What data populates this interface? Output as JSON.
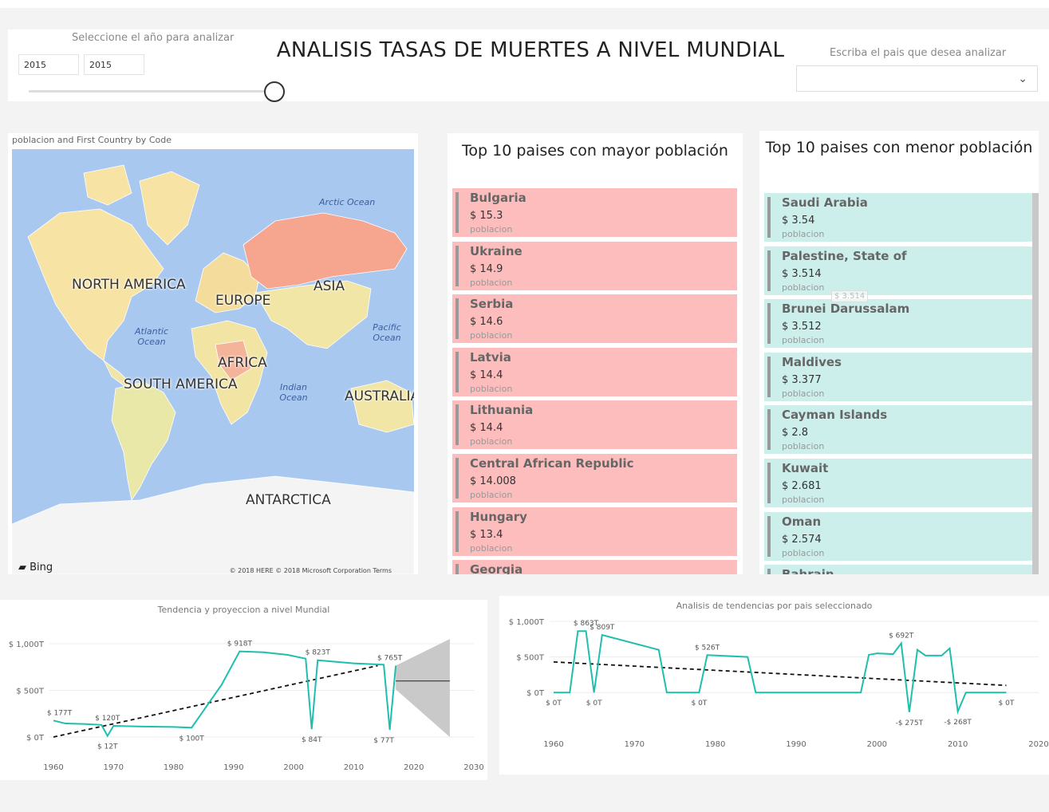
{
  "header": {
    "year_label": "Seleccione el año para analizar",
    "year_from": "2015",
    "year_to": "2015",
    "title": "ANALISIS TASAS DE MUERTES A NIVEL MUNDIAL",
    "country_label": "Escriba el pais que desea analizar"
  },
  "map": {
    "title": "poblacion and First Country by Code",
    "continents": [
      "NORTH AMERICA",
      "EUROPE",
      "ASIA",
      "AFRICA",
      "SOUTH AMERICA",
      "AUSTRALIA",
      "ANTARCTICA"
    ],
    "oceans": [
      "Arctic Ocean",
      "Atlantic Ocean",
      "Pacific Ocean",
      "Indian Ocean"
    ],
    "provider": "Bing",
    "copyright": "© 2018 HERE © 2018 Microsoft Corporation  Terms"
  },
  "top_high": {
    "title": "Top 10 paises con mayor población",
    "category": "poblacion",
    "items": [
      {
        "name": "Bulgaria",
        "value": "$ 15.3"
      },
      {
        "name": "Ukraine",
        "value": "$ 14.9"
      },
      {
        "name": "Serbia",
        "value": "$ 14.6"
      },
      {
        "name": "Latvia",
        "value": "$ 14.4"
      },
      {
        "name": "Lithuania",
        "value": "$ 14.4"
      },
      {
        "name": "Central African Republic",
        "value": "$ 14.008"
      },
      {
        "name": "Hungary",
        "value": "$ 13.4"
      },
      {
        "name": "Georgia",
        "value": ""
      }
    ],
    "color": "#fdbdbd"
  },
  "top_low": {
    "title": "Top 10 paises con menor población",
    "category": "poblacion",
    "tooltip": "$ 3.514",
    "items": [
      {
        "name": "Saudi Arabia",
        "value": "$ 3.54"
      },
      {
        "name": "Palestine, State of",
        "value": "$ 3.514"
      },
      {
        "name": "Brunei Darussalam",
        "value": "$ 3.512"
      },
      {
        "name": "Maldives",
        "value": "$ 3.377"
      },
      {
        "name": "Cayman Islands",
        "value": "$ 2.8"
      },
      {
        "name": "Kuwait",
        "value": "$ 2.681"
      },
      {
        "name": "Oman",
        "value": "$ 2.574"
      },
      {
        "name": "Bahrain",
        "value": ""
      }
    ],
    "color": "#ccefec"
  },
  "chart_data": [
    {
      "type": "line",
      "title": "Tendencia y proyeccion a nivel Mundial",
      "x_ticks": [
        1960,
        1970,
        1980,
        1990,
        2000,
        2010,
        2020,
        2030
      ],
      "y_ticks": [
        "$ 0T",
        "$ 500T",
        "$ 1,000T"
      ],
      "y_tick_values": [
        0,
        500,
        1000
      ],
      "xlim": [
        1960,
        2030
      ],
      "ylim": [
        0,
        1000
      ],
      "series": [
        {
          "x": [
            1960,
            1962,
            1965,
            1968,
            1969,
            1970,
            1975,
            1980,
            1983,
            1988,
            1991,
            1995,
            1999,
            2002,
            2003,
            2004,
            2010,
            2015,
            2016,
            2017
          ],
          "y": [
            177,
            145,
            140,
            130,
            12,
            120,
            112,
            108,
            100,
            560,
            918,
            908,
            880,
            840,
            84,
            823,
            790,
            775,
            77,
            765
          ]
        }
      ],
      "trend": {
        "x": [
          1960,
          2014
        ],
        "y": [
          0,
          765
        ]
      },
      "forecast": {
        "x": [
          2017,
          2026
        ],
        "y": [
          600,
          600
        ],
        "upper": [
          765,
          1050
        ],
        "lower": [
          510,
          0
        ]
      },
      "data_labels": [
        {
          "x": 1961,
          "y": 177,
          "text": "$ 177T"
        },
        {
          "x": 1969,
          "y": 120,
          "text": "$ 120T"
        },
        {
          "x": 1969,
          "y": 12,
          "text": "$ 12T"
        },
        {
          "x": 1983,
          "y": 100,
          "text": "$ 100T"
        },
        {
          "x": 1991,
          "y": 918,
          "text": "$ 918T"
        },
        {
          "x": 2004,
          "y": 823,
          "text": "$ 823T"
        },
        {
          "x": 2003,
          "y": 84,
          "text": "$ 84T"
        },
        {
          "x": 2016,
          "y": 765,
          "text": "$ 765T"
        },
        {
          "x": 2015,
          "y": 77,
          "text": "$ 77T"
        }
      ]
    },
    {
      "type": "line",
      "title": "Analisis de tendencias por pais seleccionado",
      "x_ticks": [
        1960,
        1970,
        1980,
        1990,
        2000,
        2010,
        2020
      ],
      "y_ticks": [
        "$ 0T",
        "$ 500T",
        "$ 1,000T"
      ],
      "y_tick_values": [
        0,
        500,
        1000
      ],
      "xlim": [
        1960,
        2020
      ],
      "ylim": [
        -300,
        1000
      ],
      "series": [
        {
          "x": [
            1960,
            1962,
            1963,
            1964,
            1965,
            1966,
            1973,
            1974,
            1978,
            1979,
            1984,
            1985,
            1998,
            1999,
            2000,
            2002,
            2003,
            2004,
            2005,
            2006,
            2008,
            2009,
            2010,
            2011,
            2016
          ],
          "y": [
            0,
            0,
            863,
            863,
            0,
            809,
            600,
            0,
            0,
            526,
            500,
            0,
            0,
            530,
            550,
            540,
            692,
            -275,
            600,
            520,
            520,
            620,
            -268,
            0,
            0
          ]
        }
      ],
      "trend": {
        "x": [
          1960,
          2016
        ],
        "y": [
          430,
          100
        ]
      },
      "data_labels": [
        {
          "x": 1960,
          "y": 0,
          "text": "$ 0T"
        },
        {
          "x": 1964,
          "y": 863,
          "text": "$ 863T"
        },
        {
          "x": 1966,
          "y": 809,
          "text": "$ 809T"
        },
        {
          "x": 1965,
          "y": 0,
          "text": "$ 0T"
        },
        {
          "x": 1979,
          "y": 526,
          "text": "$ 526T"
        },
        {
          "x": 1978,
          "y": 0,
          "text": "$ 0T"
        },
        {
          "x": 2003,
          "y": 692,
          "text": "$ 692T"
        },
        {
          "x": 2004,
          "y": -275,
          "text": "-$ 275T"
        },
        {
          "x": 2010,
          "y": -268,
          "text": "-$ 268T"
        },
        {
          "x": 2016,
          "y": 0,
          "text": "$ 0T"
        }
      ]
    }
  ],
  "colors": {
    "line": "#1fbfae",
    "pink_card": "#fdbdbd",
    "teal_card": "#ccefec",
    "forecast_band": "#c9c9c9"
  }
}
